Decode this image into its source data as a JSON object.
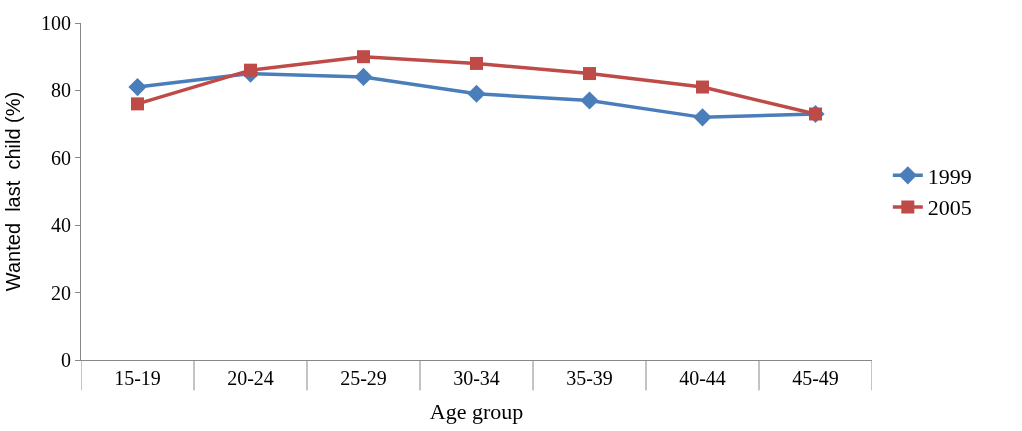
{
  "chart_data": {
    "type": "line",
    "xlabel": "Age group",
    "ylabel": "Wanted  last  child (%)",
    "categories": [
      "15-19",
      "20-24",
      "25-29",
      "30-34",
      "35-39",
      "40-44",
      "45-49"
    ],
    "series": [
      {
        "name": "1999",
        "color": "#4a7ebb",
        "marker": "diamond",
        "values": [
          81,
          85,
          84,
          79,
          77,
          72,
          73
        ]
      },
      {
        "name": "2005",
        "color": "#be4b48",
        "marker": "square",
        "values": [
          76,
          86,
          90,
          88,
          85,
          81,
          73
        ]
      }
    ],
    "ylim": [
      0,
      100
    ],
    "yticks": [
      0,
      20,
      40,
      60,
      80,
      100
    ],
    "legend": "right",
    "line_style": "solid"
  }
}
